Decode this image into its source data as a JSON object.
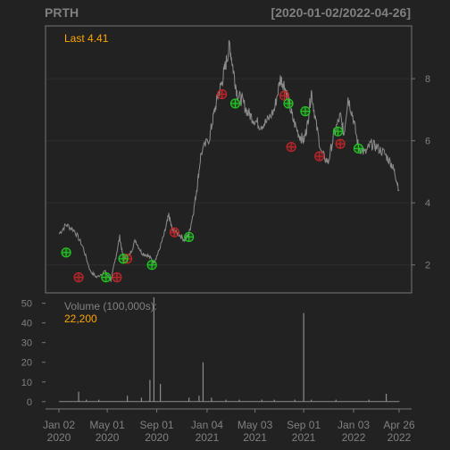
{
  "header": {
    "symbol": "PRTH",
    "date_range": "[2020-01-02/2022-04-26]"
  },
  "colors": {
    "background": "#222222",
    "panel_border": "#777777",
    "grid": "#2e2e2e",
    "price_line": "#8c8c8c",
    "label_text": "#808080",
    "accent_orange": "#ffa500",
    "buy_marker": "#22c722",
    "sell_marker": "#c0262a"
  },
  "chart_data": [
    {
      "type": "line",
      "panel": "price",
      "title": "",
      "last_label": "Last 4.41",
      "y_ticks": [
        2,
        4,
        6,
        8
      ],
      "ylim": [
        1.1,
        9.7
      ],
      "grid": true,
      "series": [
        {
          "points": [
            [
              "2020-01-02",
              3.0
            ],
            [
              "2020-01-20",
              3.3
            ],
            [
              "2020-02-10",
              3.1
            ],
            [
              "2020-03-01",
              2.6
            ],
            [
              "2020-03-20",
              1.8
            ],
            [
              "2020-04-05",
              1.6
            ],
            [
              "2020-04-25",
              1.8
            ],
            [
              "2020-05-10",
              1.5
            ],
            [
              "2020-05-20",
              2.1
            ],
            [
              "2020-06-01",
              2.9
            ],
            [
              "2020-06-10",
              2.2
            ],
            [
              "2020-06-25",
              2.3
            ],
            [
              "2020-07-10",
              2.8
            ],
            [
              "2020-07-25",
              2.4
            ],
            [
              "2020-08-10",
              2.3
            ],
            [
              "2020-08-25",
              2.1
            ],
            [
              "2020-09-05",
              2.4
            ],
            [
              "2020-09-20",
              3.0
            ],
            [
              "2020-10-01",
              3.6
            ],
            [
              "2020-10-10",
              3.1
            ],
            [
              "2020-10-25",
              3.0
            ],
            [
              "2020-11-10",
              2.8
            ],
            [
              "2020-11-20",
              3.0
            ],
            [
              "2020-12-01",
              3.7
            ],
            [
              "2020-12-10",
              4.5
            ],
            [
              "2020-12-20",
              5.6
            ],
            [
              "2021-01-10",
              6.1
            ],
            [
              "2021-01-20",
              6.8
            ],
            [
              "2021-02-01",
              7.5
            ],
            [
              "2021-02-10",
              7.9
            ],
            [
              "2021-02-20",
              8.5
            ],
            [
              "2021-03-01",
              9.1
            ],
            [
              "2021-03-10",
              8.3
            ],
            [
              "2021-03-20",
              7.5
            ],
            [
              "2021-04-01",
              7.3
            ],
            [
              "2021-04-15",
              6.9
            ],
            [
              "2021-04-30",
              6.7
            ],
            [
              "2021-05-15",
              6.5
            ],
            [
              "2021-06-01",
              6.6
            ],
            [
              "2021-06-20",
              7.0
            ],
            [
              "2021-07-05",
              8.0
            ],
            [
              "2021-07-15",
              7.8
            ],
            [
              "2021-07-25",
              7.3
            ],
            [
              "2021-08-05",
              6.7
            ],
            [
              "2021-08-20",
              6.2
            ],
            [
              "2021-09-01",
              6.0
            ],
            [
              "2021-09-10",
              6.5
            ],
            [
              "2021-09-20",
              7.6
            ],
            [
              "2021-10-01",
              6.6
            ],
            [
              "2021-10-15",
              5.6
            ],
            [
              "2021-11-01",
              5.3
            ],
            [
              "2021-11-15",
              6.2
            ],
            [
              "2021-12-01",
              6.8
            ],
            [
              "2021-12-10",
              6.2
            ],
            [
              "2021-12-20",
              7.4
            ],
            [
              "2022-01-01",
              6.8
            ],
            [
              "2022-01-15",
              5.8
            ],
            [
              "2022-02-01",
              5.6
            ],
            [
              "2022-02-15",
              5.9
            ],
            [
              "2022-03-01",
              5.8
            ],
            [
              "2022-03-20",
              5.6
            ],
            [
              "2022-04-05",
              5.3
            ],
            [
              "2022-04-15",
              5.0
            ],
            [
              "2022-04-26",
              4.41
            ]
          ]
        }
      ],
      "buy_markers": [
        [
          "2020-01-20",
          2.4
        ],
        [
          "2020-04-28",
          1.6
        ],
        [
          "2020-06-10",
          2.2
        ],
        [
          "2020-08-20",
          2.0
        ],
        [
          "2020-11-20",
          2.9
        ],
        [
          "2021-03-15",
          7.2
        ],
        [
          "2021-07-25",
          7.2
        ],
        [
          "2021-09-05",
          6.95
        ],
        [
          "2021-11-25",
          6.3
        ],
        [
          "2022-01-15",
          5.75
        ]
      ],
      "sell_markers": [
        [
          "2020-02-20",
          1.6
        ],
        [
          "2020-05-25",
          1.6
        ],
        [
          "2020-06-20",
          2.2
        ],
        [
          "2020-10-15",
          3.05
        ],
        [
          "2021-02-10",
          7.5
        ],
        [
          "2021-07-15",
          7.45
        ],
        [
          "2021-08-01",
          5.8
        ],
        [
          "2021-10-10",
          5.5
        ],
        [
          "2021-12-01",
          5.9
        ]
      ]
    },
    {
      "type": "bar",
      "panel": "volume",
      "title": "Volume (100,000s):",
      "last_label": "22,200",
      "y_ticks": [
        0,
        10,
        20,
        30,
        40,
        50
      ],
      "ylim": [
        -1,
        53
      ],
      "series": [
        {
          "points": [
            [
              "2020-02-20",
              5
            ],
            [
              "2020-03-10",
              1
            ],
            [
              "2020-04-10",
              1
            ],
            [
              "2020-06-20",
              3
            ],
            [
              "2020-07-25",
              2
            ],
            [
              "2020-08-15",
              11
            ],
            [
              "2020-08-25",
              53
            ],
            [
              "2020-09-10",
              9
            ],
            [
              "2020-11-20",
              2
            ],
            [
              "2020-12-15",
              3
            ],
            [
              "2020-12-25",
              20
            ],
            [
              "2021-01-15",
              2
            ],
            [
              "2021-02-20",
              1
            ],
            [
              "2021-03-25",
              1
            ],
            [
              "2021-05-20",
              1
            ],
            [
              "2021-06-20",
              1
            ],
            [
              "2021-08-10",
              1
            ],
            [
              "2021-09-01",
              45
            ],
            [
              "2021-09-20",
              1
            ],
            [
              "2021-11-20",
              1
            ],
            [
              "2022-02-10",
              1
            ],
            [
              "2022-03-25",
              4
            ],
            [
              "2022-04-26",
              0.222
            ]
          ]
        }
      ]
    }
  ],
  "x_axis": {
    "range": [
      "2020-01-02",
      "2022-04-26"
    ],
    "ticks": [
      {
        "date": "2020-01-02",
        "line1": "Jan 02",
        "line2": "2020"
      },
      {
        "date": "2020-05-01",
        "line1": "May 01",
        "line2": "2020"
      },
      {
        "date": "2020-09-01",
        "line1": "Sep 01",
        "line2": "2020"
      },
      {
        "date": "2021-01-04",
        "line1": "Jan 04",
        "line2": "2021"
      },
      {
        "date": "2021-05-03",
        "line1": "May 03",
        "line2": "2021"
      },
      {
        "date": "2021-09-01",
        "line1": "Sep 01",
        "line2": "2021"
      },
      {
        "date": "2022-01-03",
        "line1": "Jan 03",
        "line2": "2022"
      },
      {
        "date": "2022-04-26",
        "line1": "Apr 26",
        "line2": "2022"
      }
    ]
  }
}
